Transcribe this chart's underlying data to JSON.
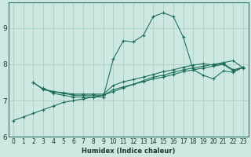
{
  "xlabel": "Humidex (Indice chaleur)",
  "ylabel": "",
  "background_color": "#cce8e0",
  "grid_color": "#a8cfc8",
  "line_color": "#1a6b5a",
  "xlim": [
    -0.5,
    23.5
  ],
  "ylim": [
    6.0,
    9.7
  ],
  "yticks": [
    6,
    7,
    8,
    9
  ],
  "xticks": [
    0,
    1,
    2,
    3,
    4,
    5,
    6,
    7,
    8,
    9,
    10,
    11,
    12,
    13,
    14,
    15,
    16,
    17,
    18,
    19,
    20,
    21,
    22,
    23
  ],
  "lines": [
    {
      "x": [
        0,
        1,
        2,
        3,
        4,
        5,
        6,
        7,
        8,
        9,
        10,
        11,
        12,
        13,
        14,
        15,
        16,
        17,
        18,
        19,
        20,
        21,
        22,
        23
      ],
      "y": [
        6.45,
        6.55,
        6.65,
        6.75,
        6.85,
        6.95,
        7.0,
        7.05,
        7.1,
        7.15,
        7.25,
        7.35,
        7.45,
        7.55,
        7.65,
        7.7,
        7.78,
        7.85,
        7.9,
        7.95,
        8.0,
        8.05,
        8.1,
        7.9
      ]
    },
    {
      "x": [
        2,
        3,
        4,
        5,
        6,
        7,
        8,
        9,
        10,
        11,
        12,
        13,
        14,
        15,
        16,
        17,
        18,
        19,
        20,
        21,
        22,
        23
      ],
      "y": [
        7.5,
        7.3,
        7.25,
        7.2,
        7.15,
        7.15,
        7.15,
        7.15,
        7.3,
        7.38,
        7.45,
        7.52,
        7.6,
        7.65,
        7.72,
        7.8,
        7.85,
        7.9,
        7.95,
        8.0,
        7.82,
        7.92
      ]
    },
    {
      "x": [
        3,
        4,
        5,
        6,
        7,
        8,
        9,
        10,
        11,
        12,
        13,
        14,
        15,
        16,
        17,
        18,
        19,
        20,
        21,
        22,
        23
      ],
      "y": [
        7.35,
        7.2,
        7.15,
        7.1,
        7.1,
        7.1,
        7.1,
        8.15,
        8.65,
        8.62,
        8.8,
        9.32,
        9.42,
        9.32,
        8.75,
        7.85,
        7.7,
        7.6,
        7.82,
        7.78,
        7.92
      ]
    },
    {
      "x": [
        2,
        3,
        4,
        5,
        6,
        7,
        8,
        9,
        10,
        11,
        12,
        13,
        14,
        15,
        16,
        17,
        18,
        19,
        20,
        21,
        22,
        23
      ],
      "y": [
        7.5,
        7.32,
        7.25,
        7.22,
        7.18,
        7.18,
        7.18,
        7.18,
        7.42,
        7.52,
        7.58,
        7.65,
        7.72,
        7.8,
        7.85,
        7.92,
        7.98,
        8.02,
        7.98,
        8.02,
        7.85,
        7.92
      ]
    }
  ]
}
